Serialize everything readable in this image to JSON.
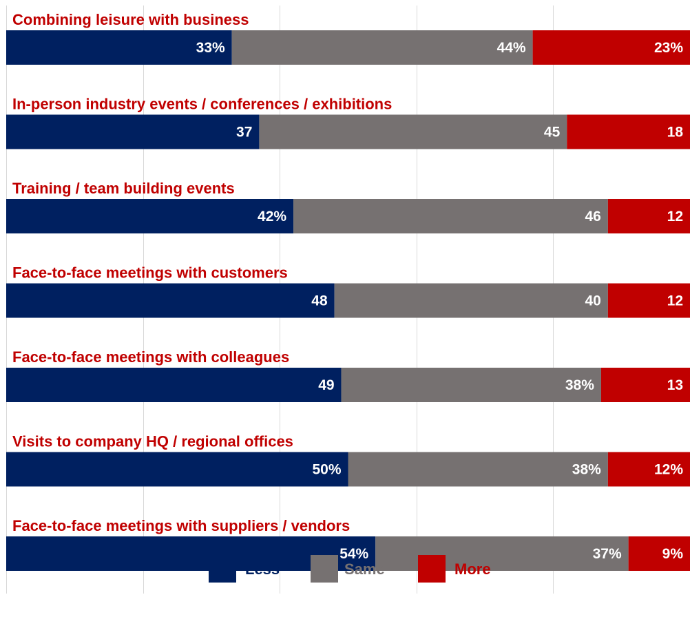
{
  "chart_data": {
    "type": "bar",
    "orientation": "horizontal",
    "stacked": true,
    "xlim": [
      0,
      100
    ],
    "grid": true,
    "legend_position": "bottom",
    "category_label_color": "#c00000",
    "categories": [
      "Combining leisure with business",
      "In-person industry events / conferences / exhibitions",
      "Training / team building events",
      "Face-to-face meetings with customers",
      "Face-to-face meetings with colleagues",
      "Visits to company HQ / regional offices",
      "Face-to-face meetings with suppliers / vendors"
    ],
    "series": [
      {
        "name": "Less",
        "color": "#002060",
        "values": [
          33,
          37,
          42,
          48,
          49,
          50,
          54
        ],
        "labels": [
          "33%",
          "37",
          "42%",
          "48",
          "49",
          "50%",
          "54%"
        ]
      },
      {
        "name": "Same",
        "color": "#767171",
        "values": [
          44,
          45,
          46,
          40,
          38,
          38,
          37
        ],
        "labels": [
          "44%",
          "45",
          "46",
          "40",
          "38%",
          "38%",
          "37%"
        ]
      },
      {
        "name": "More",
        "color": "#c00000",
        "values": [
          23,
          18,
          12,
          12,
          13,
          12,
          9
        ],
        "labels": [
          "23%",
          "18",
          "12",
          "12",
          "13",
          "12%",
          "9%"
        ]
      }
    ]
  }
}
